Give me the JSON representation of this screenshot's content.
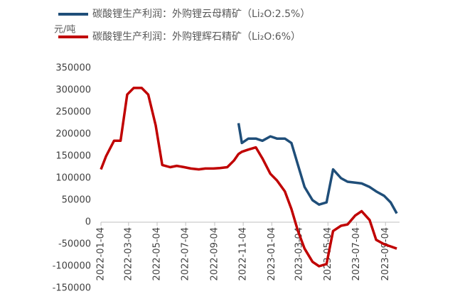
{
  "chart_data": {
    "type": "line",
    "y_label": "元/吨",
    "x": [
      "2022-01-04",
      "2022-01-15",
      "2022-02-01",
      "2022-02-15",
      "2022-03-01",
      "2022-03-15",
      "2022-04-01",
      "2022-04-15",
      "2022-05-01",
      "2022-05-15",
      "2022-06-01",
      "2022-06-15",
      "2022-07-01",
      "2022-07-15",
      "2022-08-01",
      "2022-08-15",
      "2022-09-01",
      "2022-09-15",
      "2022-10-01",
      "2022-10-15",
      "2022-10-25",
      "2022-11-01",
      "2022-11-15",
      "2022-12-01",
      "2022-12-15",
      "2023-01-01",
      "2023-01-15",
      "2023-02-01",
      "2023-02-15",
      "2023-03-01",
      "2023-03-15",
      "2023-04-01",
      "2023-04-15",
      "2023-05-01",
      "2023-05-15",
      "2023-06-01",
      "2023-06-15",
      "2023-07-01",
      "2023-07-15",
      "2023-08-01",
      "2023-08-15",
      "2023-09-01",
      "2023-09-15",
      "2023-09-28"
    ],
    "series": [
      {
        "name": "碳酸锂生产利润：外购锂云母精矿（Li₂O:2.5%）",
        "color": "#1f4e79",
        "values": [
          null,
          null,
          null,
          null,
          null,
          null,
          null,
          null,
          null,
          null,
          null,
          null,
          null,
          null,
          null,
          null,
          null,
          null,
          null,
          null,
          225000,
          180000,
          190000,
          190000,
          185000,
          195000,
          190000,
          190000,
          180000,
          130000,
          80000,
          50000,
          40000,
          45000,
          120000,
          100000,
          92000,
          90000,
          88000,
          80000,
          70000,
          60000,
          45000,
          20000
        ]
      },
      {
        "name": "碳酸锂生产利润：外购锂辉石精矿（Li₂O:6%）",
        "color": "#c00000",
        "values": [
          120000,
          150000,
          185000,
          185000,
          290000,
          305000,
          305000,
          290000,
          220000,
          130000,
          125000,
          128000,
          125000,
          122000,
          120000,
          122000,
          122000,
          123000,
          125000,
          140000,
          155000,
          160000,
          165000,
          170000,
          145000,
          110000,
          95000,
          70000,
          30000,
          -20000,
          -60000,
          -90000,
          -100000,
          -95000,
          -20000,
          -8000,
          -5000,
          15000,
          25000,
          5000,
          -40000,
          -50000,
          -55000,
          -60000
        ]
      }
    ],
    "xlim": [
      "2022-01-04",
      "2023-10-04"
    ],
    "xticks": [
      "2022-01-04",
      "2022-03-04",
      "2022-05-04",
      "2022-07-04",
      "2022-09-04",
      "2022-11-04",
      "2023-01-04",
      "2023-03-04",
      "2023-05-04",
      "2023-07-04",
      "2023-09-04"
    ],
    "ylim": [
      -150000,
      350000
    ],
    "yticks": [
      -150000,
      -100000,
      -50000,
      0,
      50000,
      100000,
      150000,
      200000,
      250000,
      300000,
      350000
    ]
  }
}
